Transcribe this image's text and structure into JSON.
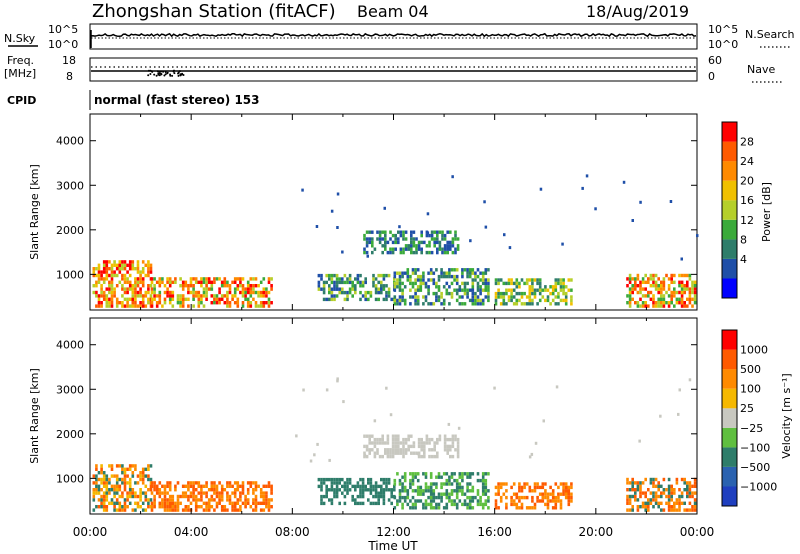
{
  "header": {
    "station": "Zhongshan Station (fitACF)",
    "beam": "Beam 04",
    "date": "18/Aug/2019"
  },
  "top_panels": {
    "nsky_label": "N.Sky",
    "nsky_ticks": [
      "10^5",
      "10^0"
    ],
    "nsearch_label": "N.Search",
    "nsearch_ticks": [
      "10^5",
      "10^0"
    ],
    "freq_label": "Freq.",
    "freq_unit": "[MHz]",
    "freq_ticks": [
      "18",
      "8"
    ],
    "nave_label": "Nave",
    "nave_ticks": [
      "60",
      "0"
    ],
    "cpid_label": "CPID",
    "cpid_text": "normal (fast stereo) 153"
  },
  "chart_data": [
    {
      "type": "heatmap",
      "name": "power",
      "ylabel": "Slant Range [km]",
      "ylim": [
        200,
        4600
      ],
      "yticks": [
        "1000",
        "2000",
        "3000",
        "4000"
      ],
      "colorbar_label": "Power [dB]",
      "colorbar_ticks": [
        "28",
        "24",
        "20",
        "16",
        "12",
        "8",
        "4"
      ],
      "colors": [
        "#0000ff",
        "#1f4fa8",
        "#2e7d6a",
        "#3aaa3a",
        "#b5cf2a",
        "#f0c000",
        "#ff8a00",
        "#ff5a00",
        "#ff0000"
      ],
      "regions": [
        {
          "t": [
            0.1,
            2.4
          ],
          "r": [
            250,
            1300
          ],
          "levels": [
            4,
            5,
            6,
            7,
            8
          ]
        },
        {
          "t": [
            2.4,
            7.2
          ],
          "r": [
            250,
            900
          ],
          "levels": [
            3,
            4,
            5,
            6,
            7,
            8
          ]
        },
        {
          "t": [
            9.0,
            12.0
          ],
          "r": [
            400,
            1000
          ],
          "levels": [
            1,
            2,
            3,
            4
          ]
        },
        {
          "t": [
            10.8,
            14.6
          ],
          "r": [
            1450,
            1950
          ],
          "levels": [
            1,
            2,
            3
          ]
        },
        {
          "t": [
            12.0,
            15.8
          ],
          "r": [
            300,
            1100
          ],
          "levels": [
            1,
            2,
            3,
            4
          ]
        },
        {
          "t": [
            16.0,
            19.0
          ],
          "r": [
            300,
            900
          ],
          "levels": [
            2,
            3,
            4,
            5
          ]
        },
        {
          "t": [
            21.2,
            24.0
          ],
          "r": [
            250,
            1000
          ],
          "levels": [
            3,
            4,
            5,
            6,
            7,
            8
          ]
        }
      ]
    },
    {
      "type": "heatmap",
      "name": "velocity",
      "ylabel": "Slant Range [km]",
      "ylim": [
        200,
        4600
      ],
      "yticks": [
        "1000",
        "2000",
        "3000",
        "4000"
      ],
      "colorbar_label": "Velocity [m s⁻¹]",
      "colorbar_ticks": [
        "1000",
        "500",
        "100",
        "25",
        "−25",
        "−100",
        "−500",
        "−1000"
      ],
      "colors": [
        "#1f3fbf",
        "#2a62b0",
        "#2e7d6a",
        "#5fbf3f",
        "#c8c8c0",
        "#f5b800",
        "#ff8a00",
        "#ff5a00",
        "#ff0000"
      ],
      "regions": [
        {
          "t": [
            0.1,
            2.4
          ],
          "r": [
            250,
            1300
          ],
          "levels": [
            2,
            5,
            6,
            7
          ]
        },
        {
          "t": [
            2.4,
            7.2
          ],
          "r": [
            250,
            900
          ],
          "levels": [
            6,
            7
          ]
        },
        {
          "t": [
            9.0,
            12.0
          ],
          "r": [
            400,
            1000
          ],
          "levels": [
            2
          ]
        },
        {
          "t": [
            10.8,
            14.6
          ],
          "r": [
            1450,
            1950
          ],
          "levels": [
            4
          ]
        },
        {
          "t": [
            12.0,
            15.8
          ],
          "r": [
            300,
            1100
          ],
          "levels": [
            2,
            3
          ]
        },
        {
          "t": [
            16.0,
            19.0
          ],
          "r": [
            300,
            900
          ],
          "levels": [
            6,
            7
          ]
        },
        {
          "t": [
            21.2,
            24.0
          ],
          "r": [
            250,
            1000
          ],
          "levels": [
            6,
            7,
            2
          ]
        }
      ]
    }
  ],
  "xaxis": {
    "label": "Time UT",
    "ticks": [
      "00:00",
      "04:00",
      "08:00",
      "12:00",
      "16:00",
      "20:00",
      "00:00"
    ]
  }
}
